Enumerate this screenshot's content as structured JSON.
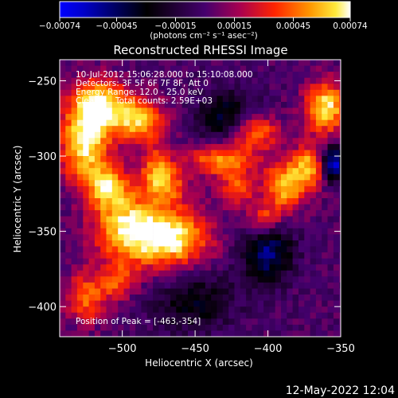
{
  "chart_data": {
    "type": "heatmap",
    "title": "Reconstructed RHESSI Image",
    "xlabel": "Heliocentric X (arcsec)",
    "ylabel": "Heliocentric Y (arcsec)",
    "xlim": [
      -543,
      -350
    ],
    "ylim": [
      -420,
      -236
    ],
    "xticks": [
      {
        "value": -500,
        "label": "−500"
      },
      {
        "value": -450,
        "label": "−450"
      },
      {
        "value": -400,
        "label": "−400"
      },
      {
        "value": -350,
        "label": "−350"
      }
    ],
    "yticks": [
      {
        "value": -250,
        "label": "−250"
      },
      {
        "value": -300,
        "label": "−300"
      },
      {
        "value": -350,
        "label": "−350"
      },
      {
        "value": -400,
        "label": "−400"
      }
    ],
    "colorbar": {
      "range": [
        -0.00074,
        0.00074
      ],
      "unit": "(photons cm⁻² s⁻¹ asec⁻²)",
      "ticks": [
        {
          "value": -0.00074,
          "label": "−0.00074"
        },
        {
          "value": -0.00045,
          "label": "−0.00045"
        },
        {
          "value": -0.00015,
          "label": "−0.00015"
        },
        {
          "value": 0.00015,
          "label": "0.00015"
        },
        {
          "value": 0.00045,
          "label": "0.00045"
        },
        {
          "value": 0.00074,
          "label": "0.00074"
        }
      ]
    },
    "annotations": {
      "time_range": "10-Jul-2012 15:06:28.000 to 15:10:08.000",
      "detectors": "Detectors: 3F 5F 6F 7F 8F, Att 0",
      "energy_range": "Energy Range: 12.0 - 25.0 keV",
      "clean_label": "Clean",
      "total_counts": "Total counts: 2.59E+03",
      "peak_position": "Position of Peak = [-463,-354]"
    },
    "peak": {
      "x": -463,
      "y": -354
    },
    "sources": [
      {
        "x": -468,
        "y": -352,
        "amp": 0.00074,
        "sx": 18,
        "sy": 14
      },
      {
        "x": -500,
        "y": -345,
        "amp": 0.0006,
        "sx": 16,
        "sy": 18
      },
      {
        "x": -528,
        "y": -290,
        "amp": 0.0007,
        "sx": 12,
        "sy": 18
      },
      {
        "x": -517,
        "y": -264,
        "amp": 0.00065,
        "sx": 14,
        "sy": 12
      },
      {
        "x": -490,
        "y": -274,
        "amp": 0.0006,
        "sx": 12,
        "sy": 10
      },
      {
        "x": -433,
        "y": -300,
        "amp": 0.0006,
        "sx": 16,
        "sy": 8
      },
      {
        "x": -412,
        "y": -282,
        "amp": 0.00055,
        "sx": 12,
        "sy": 8
      },
      {
        "x": -390,
        "y": -318,
        "amp": 0.0006,
        "sx": 10,
        "sy": 12
      },
      {
        "x": -373,
        "y": -305,
        "amp": 0.00055,
        "sx": 8,
        "sy": 10
      },
      {
        "x": -362,
        "y": -266,
        "amp": 0.0007,
        "sx": 10,
        "sy": 12
      },
      {
        "x": -512,
        "y": -318,
        "amp": 0.0005,
        "sx": 10,
        "sy": 10
      },
      {
        "x": -527,
        "y": -392,
        "amp": 0.00045,
        "sx": 10,
        "sy": 12
      },
      {
        "x": -471,
        "y": -318,
        "amp": 0.0004,
        "sx": 10,
        "sy": 8
      },
      {
        "x": -405,
        "y": -340,
        "amp": 0.0004,
        "sx": 8,
        "sy": 8
      },
      {
        "x": -478,
        "y": -305,
        "amp": 0.00045,
        "sx": 8,
        "sy": 10
      },
      {
        "x": -423,
        "y": -320,
        "amp": 0.0004,
        "sx": 8,
        "sy": 8
      },
      {
        "x": -505,
        "y": -382,
        "amp": 0.00035,
        "sx": 8,
        "sy": 8
      },
      {
        "x": -430,
        "y": -275,
        "amp": -0.0004,
        "sx": 14,
        "sy": 14
      },
      {
        "x": -453,
        "y": -395,
        "amp": -0.0003,
        "sx": 20,
        "sy": 14
      },
      {
        "x": -402,
        "y": -362,
        "amp": -0.0005,
        "sx": 12,
        "sy": 14
      },
      {
        "x": -357,
        "y": -303,
        "amp": -0.0007,
        "sx": 6,
        "sy": 8
      }
    ]
  },
  "footer": {
    "date": "12‑May‑2022 12:04"
  }
}
